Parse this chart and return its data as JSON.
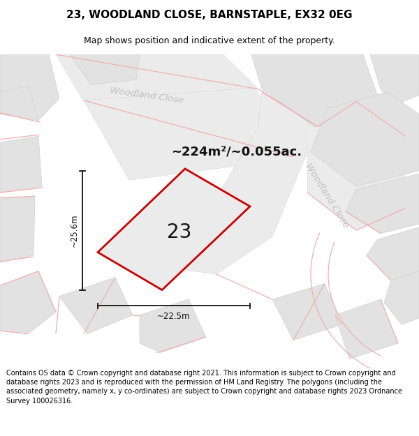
{
  "title": "23, WOODLAND CLOSE, BARNSTAPLE, EX32 0EG",
  "subtitle": "Map shows position and indicative extent of the property.",
  "area_text": "~224m²/~0.055ac.",
  "label_number": "23",
  "dim_height": "~25.6m",
  "dim_width": "~22.5m",
  "footer": "Contains OS data © Crown copyright and database right 2021. This information is subject to Crown copyright and database rights 2023 and is reproduced with the permission of HM Land Registry. The polygons (including the associated geometry, namely x, y co-ordinates) are subject to Crown copyright and database rights 2023 Ordnance Survey 100026316.",
  "bg_color": "#f8f8f8",
  "block_color": "#e2e2e2",
  "block_edge": "#d0d0d0",
  "road_color": "#ebebeb",
  "road_edge": "#d8d8d8",
  "pink": "#f0b0b0",
  "property_fill": "#ebebeb",
  "property_edge": "#cc0000",
  "road_label_color": "#c0c0c0",
  "title_color": "#000000",
  "footer_color": "#000000"
}
